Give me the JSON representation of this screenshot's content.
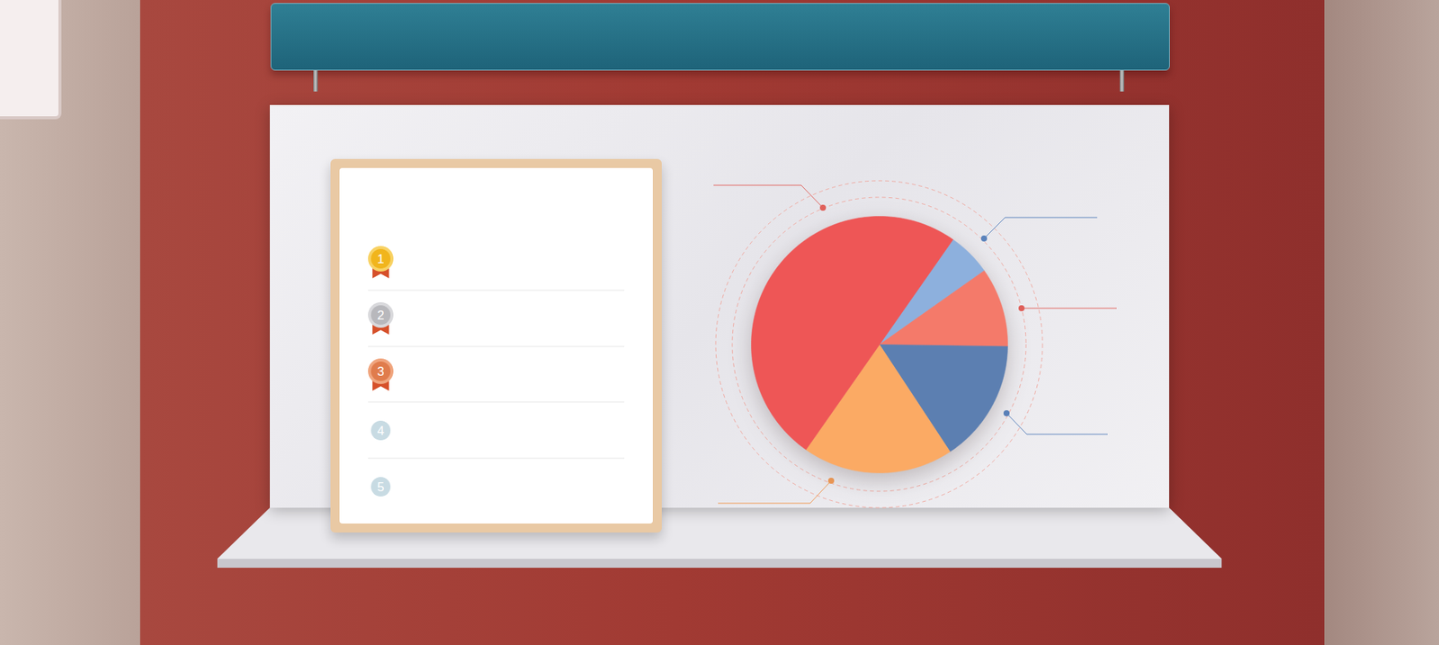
{
  "chart_data": {
    "type": "pie",
    "categories": [
      null,
      null,
      null,
      null,
      null
    ],
    "values": [
      5.5,
      10,
      15.5,
      19,
      50
    ],
    "colors": [
      "#8db0dd",
      "#f47a6a",
      "#5c7fb1",
      "#fbaa64",
      "#ee5656"
    ],
    "tick_labels": false
  },
  "ranking": {
    "ranks": [
      1,
      2,
      3,
      4,
      5
    ]
  }
}
